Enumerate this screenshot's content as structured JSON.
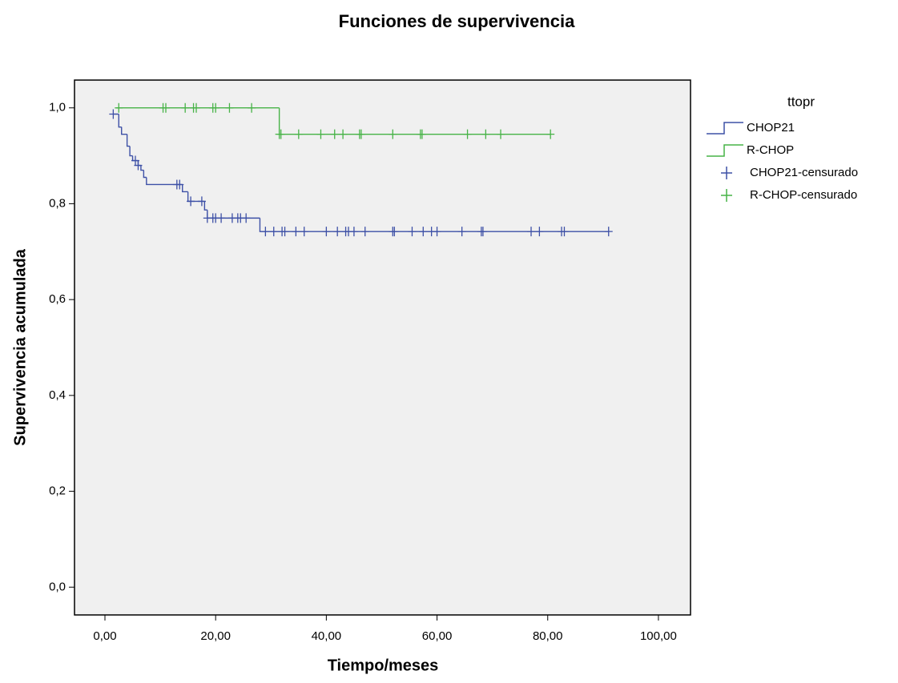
{
  "chart_data": {
    "type": "km",
    "title": "Funciones de supervivencia",
    "x_label": "Tiempo/meses",
    "y_label": "Supervivencia acumulada",
    "legend_title": "ttopr",
    "xlim": [
      -5.5,
      105.8
    ],
    "ylim": [
      -0.058,
      1.058
    ],
    "xticks": [
      {
        "value": 0,
        "label": "0,00"
      },
      {
        "value": 20,
        "label": "20,00"
      },
      {
        "value": 40,
        "label": "40,00"
      },
      {
        "value": 60,
        "label": "60,00"
      },
      {
        "value": 80,
        "label": "80,00"
      },
      {
        "value": 100,
        "label": "100,00"
      }
    ],
    "yticks": [
      {
        "value": 0,
        "label": "0,0"
      },
      {
        "value": 0.2,
        "label": "0,2"
      },
      {
        "value": 0.4,
        "label": "0,4"
      },
      {
        "value": 0.6,
        "label": "0,6"
      },
      {
        "value": 0.8,
        "label": "0,8"
      },
      {
        "value": 1.0,
        "label": "1,0"
      }
    ],
    "series": [
      {
        "name": "CHOP21",
        "color": "#3d50a6",
        "kind": "step",
        "x": [
          1.5,
          2.5,
          3,
          4,
          4.5,
          5,
          6,
          6.5,
          7,
          7.5,
          14,
          15,
          18,
          18.5,
          28,
          91
        ],
        "values": [
          0.987,
          0.96,
          0.945,
          0.92,
          0.9,
          0.89,
          0.88,
          0.87,
          0.855,
          0.84,
          0.825,
          0.805,
          0.787,
          0.77,
          0.742,
          0.742
        ]
      },
      {
        "name": "R-CHOP",
        "color": "#47b347",
        "kind": "step",
        "x": [
          2,
          31.5,
          80.5
        ],
        "values": [
          1.0,
          0.945,
          0.945
        ]
      },
      {
        "name": "CHOP21-censurado",
        "color": "#3d50a6",
        "kind": "censor",
        "x": [
          1.5,
          5.5,
          6,
          13,
          13.5,
          15.5,
          17.5,
          18.5,
          19.5,
          20,
          21,
          23,
          24,
          24.5,
          25.5,
          29,
          30.5,
          32,
          32.5,
          34.5,
          36,
          40,
          42,
          43.5,
          44,
          45,
          47,
          52,
          52.3,
          55.5,
          57.5,
          59,
          60,
          64.5,
          68,
          68.3,
          77,
          78.5,
          82.5,
          83,
          91
        ],
        "values": [
          0.987,
          0.89,
          0.88,
          0.84,
          0.84,
          0.805,
          0.805,
          0.77,
          0.77,
          0.77,
          0.77,
          0.77,
          0.77,
          0.77,
          0.77,
          0.742,
          0.742,
          0.742,
          0.742,
          0.742,
          0.742,
          0.742,
          0.742,
          0.742,
          0.742,
          0.742,
          0.742,
          0.742,
          0.742,
          0.742,
          0.742,
          0.742,
          0.742,
          0.742,
          0.742,
          0.742,
          0.742,
          0.742,
          0.742,
          0.742,
          0.742
        ]
      },
      {
        "name": "R-CHOP-censurado",
        "color": "#47b347",
        "kind": "censor",
        "x": [
          2.5,
          10.5,
          11,
          14.5,
          16,
          16.5,
          19.5,
          20,
          22.5,
          26.5,
          31.5,
          31.8,
          35,
          39,
          41.5,
          43,
          46,
          46.3,
          52,
          57,
          57.3,
          65.5,
          68.8,
          71.5,
          80.5
        ],
        "values": [
          1.0,
          1.0,
          1.0,
          1.0,
          1.0,
          1.0,
          1.0,
          1.0,
          1.0,
          1.0,
          0.945,
          0.945,
          0.945,
          0.945,
          0.945,
          0.945,
          0.945,
          0.945,
          0.945,
          0.945,
          0.945,
          0.945,
          0.945,
          0.945,
          0.945
        ]
      }
    ]
  }
}
